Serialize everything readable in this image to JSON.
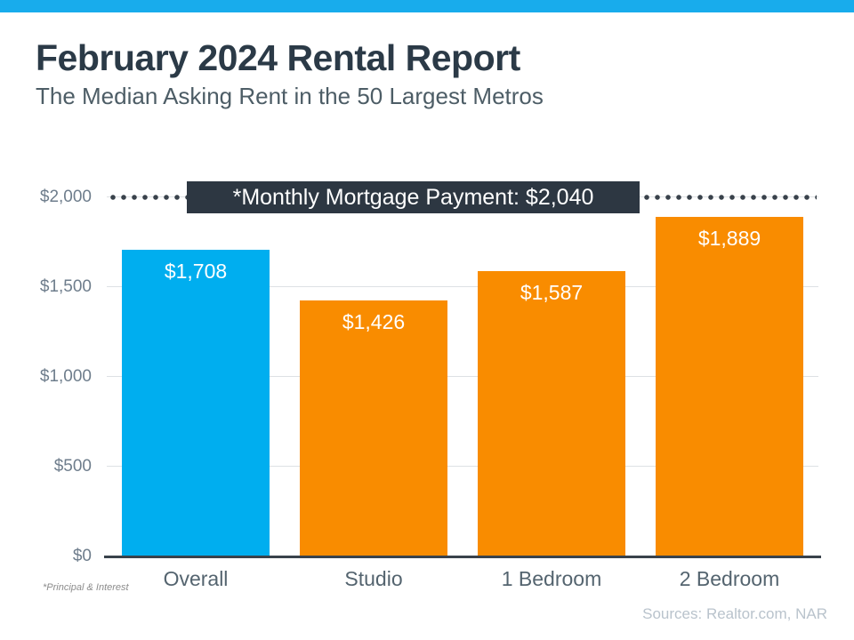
{
  "page": {
    "title": "February 2024 Rental Report",
    "subtitle": "The Median Asking Rent in the 50 Largest Metros",
    "footnote": "*Principal & Interest",
    "sources": "Sources: Realtor.com, NAR"
  },
  "colors": {
    "top_bar": "#18acec",
    "bar_highlight": "#00aeef",
    "bar_default": "#f98c00",
    "annotation_box": "#2d3742",
    "gridline": "#dde1e4",
    "axis_line": "#39424b",
    "tick_label": "#6e7d8c",
    "category_label": "#54646f"
  },
  "chart_data": {
    "type": "bar",
    "title": "February 2024 Rental Report",
    "subtitle": "The Median Asking Rent in the 50 Largest Metros",
    "categories": [
      "Overall",
      "Studio",
      "1 Bedroom",
      "2 Bedroom"
    ],
    "values": [
      1708,
      1426,
      1587,
      1889
    ],
    "value_labels": [
      "$1,708",
      "$1,426",
      "$1,587",
      "$1,889"
    ],
    "bar_colors": [
      "#00aeef",
      "#f98c00",
      "#f98c00",
      "#f98c00"
    ],
    "xlabel": "",
    "ylabel": "",
    "ylim": [
      0,
      2000
    ],
    "yticks": [
      0,
      500,
      1000,
      1500,
      2000
    ],
    "ytick_labels": [
      "$0",
      "$500",
      "$1,000",
      "$1,500",
      "$2,000"
    ],
    "grid": true,
    "legend": false,
    "annotation": {
      "label": "*Monthly Mortgage Payment: $2,040",
      "value": 2040,
      "style": "dotted-line"
    }
  }
}
